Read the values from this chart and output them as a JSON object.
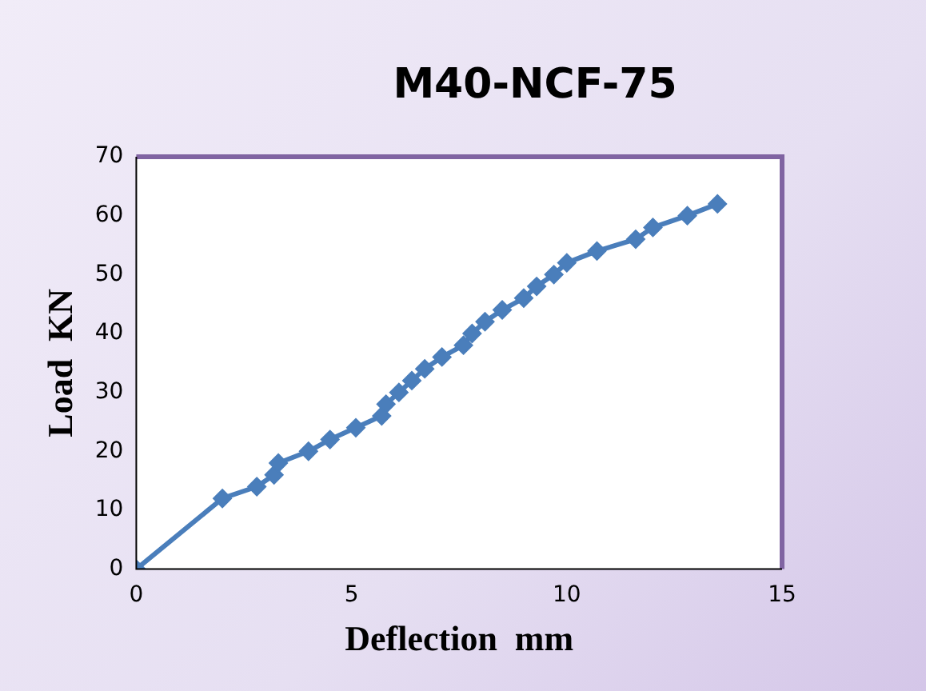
{
  "chart_data": {
    "type": "line",
    "title": "M40-NCF-75",
    "xlabel": "Deflection  mm",
    "ylabel": "Load  KN",
    "series": [
      {
        "color": "#4a7ebb",
        "x": [
          0,
          2,
          2.8,
          3.2,
          3.3,
          4,
          4.5,
          5.1,
          5.7,
          5.8,
          6.1,
          6.4,
          6.7,
          7.1,
          7.6,
          7.8,
          8.1,
          8.5,
          9,
          9.3,
          9.7,
          10,
          10.7,
          11.6,
          12,
          12.8,
          13.5
        ],
        "values": [
          0,
          12,
          14,
          16,
          18,
          20,
          22,
          24,
          26,
          28,
          30,
          32,
          34,
          36,
          38,
          40,
          42,
          44,
          46,
          48,
          50,
          52,
          54,
          56,
          58,
          60,
          62
        ]
      }
    ],
    "xlim": [
      0,
      15
    ],
    "xticks": [
      0,
      5,
      10,
      15
    ],
    "ylim": [
      0,
      70
    ],
    "yticks": [
      0,
      10,
      20,
      30,
      40,
      50,
      60,
      70
    ],
    "grid": false,
    "legend": false,
    "marker": "diamond",
    "line_style": "solid"
  }
}
